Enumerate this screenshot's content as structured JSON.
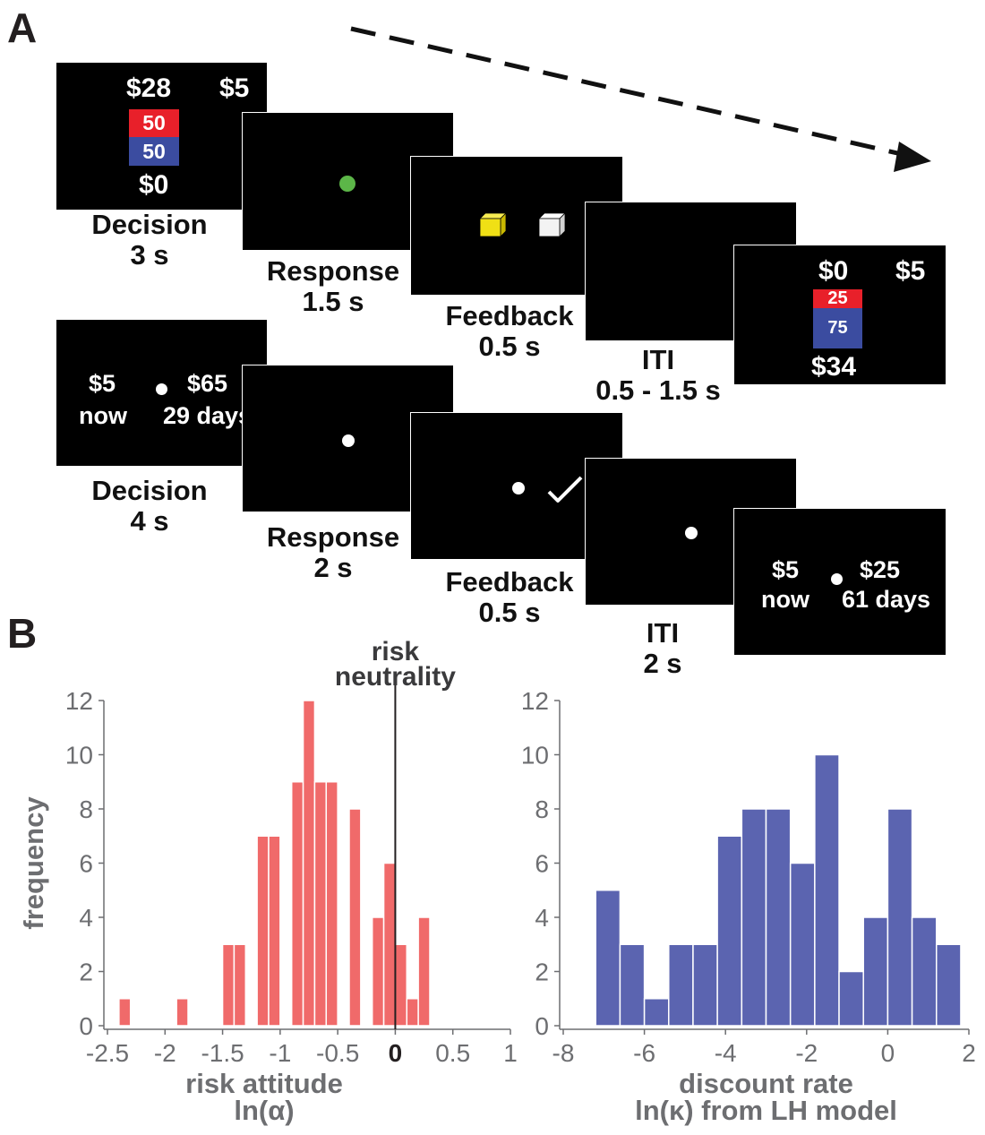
{
  "figure": {
    "panel_a_label": "A",
    "panel_b_label": "B"
  },
  "risk_task": {
    "decision_screen": {
      "gamble_win": "$28",
      "safe_amount": "$5",
      "prob_top": "50",
      "prob_bottom": "50",
      "gamble_lose": "$0"
    },
    "decision_caption": {
      "name": "Decision",
      "duration": "3 s"
    },
    "response_caption": {
      "name": "Response",
      "duration": "1.5 s"
    },
    "feedback_caption": {
      "name": "Feedback",
      "duration": "0.5 s"
    },
    "iti_caption": {
      "name": "ITI",
      "duration": "0.5 - 1.5 s"
    },
    "next_screen": {
      "gamble_top": "$0",
      "safe_amount": "$5",
      "prob_top": "25",
      "prob_bottom": "75",
      "gamble_bottom": "$34"
    },
    "colors": {
      "red": "#e8202a",
      "blue": "#3b4ca0",
      "fixation_green": "#5cb648",
      "cube_yellow": "#f0e015"
    }
  },
  "delay_task": {
    "decision_screen": {
      "left_amount": "$5",
      "left_delay": "now",
      "right_amount": "$65",
      "right_delay": "29 days"
    },
    "decision_caption": {
      "name": "Decision",
      "duration": "4 s"
    },
    "response_caption": {
      "name": "Response",
      "duration": "2 s"
    },
    "feedback_caption": {
      "name": "Feedback",
      "duration": "0.5 s"
    },
    "iti_caption": {
      "name": "ITI",
      "duration": "2 s"
    },
    "next_screen": {
      "left_amount": "$5",
      "left_delay": "now",
      "right_amount": "$25",
      "right_delay": "61 days"
    }
  },
  "chart_data": [
    {
      "type": "bar",
      "title": "",
      "xlabel": "risk attitude",
      "xlabel2": "ln(α)",
      "ylabel": "frequency",
      "annotation_line1": "risk",
      "annotation_line2": "neutrality",
      "reference_line_x": 0,
      "bin_width": 0.1,
      "bin_starts": [
        -2.4,
        -2.3,
        -2.2,
        -2.1,
        -2.0,
        -1.9,
        -1.8,
        -1.7,
        -1.6,
        -1.5,
        -1.4,
        -1.3,
        -1.2,
        -1.1,
        -1.0,
        -0.9,
        -0.8,
        -0.7,
        -0.6,
        -0.5,
        -0.4,
        -0.3,
        -0.2,
        -0.1,
        0.0,
        0.1,
        0.2,
        0.3,
        0.4,
        0.5,
        0.6,
        0.7
      ],
      "values": [
        1,
        0,
        0,
        0,
        0,
        1,
        0,
        0,
        0,
        3,
        3,
        0,
        7,
        7,
        0,
        9,
        12,
        9,
        9,
        0,
        8,
        0,
        4,
        6,
        3,
        1,
        4,
        0,
        0,
        0,
        0,
        0
      ],
      "xlim": [
        -2.5,
        1
      ],
      "ylim": [
        0,
        12
      ],
      "xticks": [
        "-2.5",
        "-2",
        "-1.5",
        "-1",
        "-0.5",
        "0",
        "0.5",
        "1"
      ],
      "xtick_values": [
        -2.5,
        -2,
        -1.5,
        -1,
        -0.5,
        0,
        0.5,
        1
      ],
      "yticks": [
        "0",
        "2",
        "4",
        "6",
        "8",
        "10",
        "12"
      ],
      "ytick_values": [
        0,
        2,
        4,
        6,
        8,
        10,
        12
      ],
      "color": "#f06a6a"
    },
    {
      "type": "bar",
      "title": "",
      "xlabel": "discount rate",
      "xlabel2": "ln(κ) from LH model",
      "bin_width": 0.6,
      "bin_starts": [
        -7.2,
        -6.6,
        -6.0,
        -5.4,
        -4.8,
        -4.2,
        -3.6,
        -3.0,
        -2.4,
        -1.8,
        -1.2,
        -0.6,
        0.0,
        0.6,
        1.2
      ],
      "values": [
        5,
        3,
        1,
        3,
        3,
        7,
        8,
        8,
        6,
        10,
        2,
        4,
        8,
        4,
        3
      ],
      "xlim": [
        -8,
        2
      ],
      "ylim": [
        0,
        12
      ],
      "xticks": [
        "-8",
        "-6",
        "-4",
        "-2",
        "0",
        "2"
      ],
      "xtick_values": [
        -8,
        -6,
        -4,
        -2,
        0,
        2
      ],
      "yticks": [
        "0",
        "2",
        "4",
        "6",
        "8",
        "10",
        "12"
      ],
      "ytick_values": [
        0,
        2,
        4,
        6,
        8,
        10,
        12
      ],
      "color": "#5b64b0"
    }
  ]
}
